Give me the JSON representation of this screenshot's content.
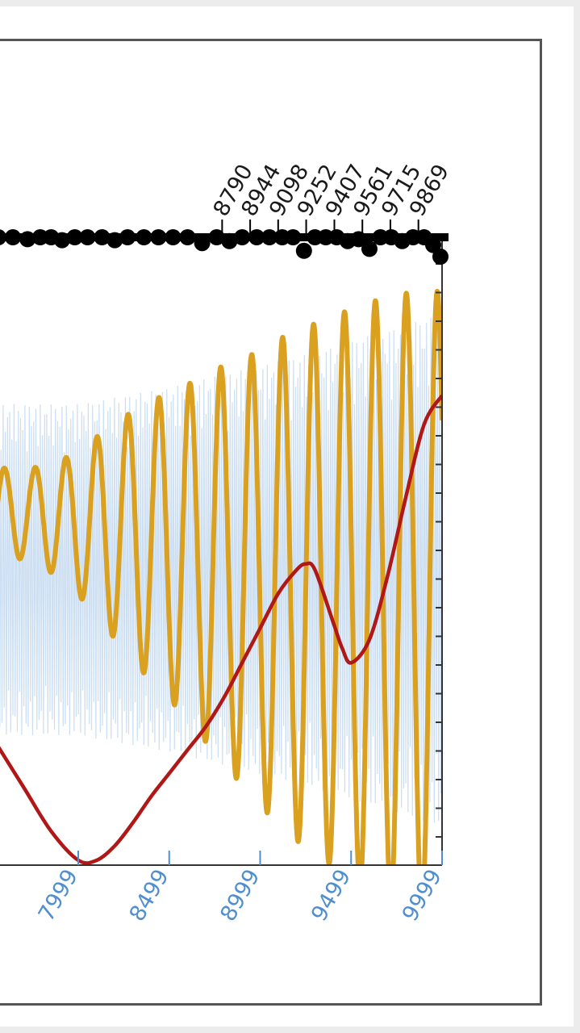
{
  "chart_data": {
    "type": "line",
    "title": "",
    "xlabel": "",
    "ylabel": "",
    "grid": false,
    "bottom_axis": {
      "visible_ticks": [
        7999,
        8499,
        8999,
        9499,
        9999
      ],
      "tick_color": "#4f8fcf"
    },
    "top_axis": {
      "visible_ticks": [
        8790,
        8944,
        9098,
        9252,
        9407,
        9561,
        9715,
        9869
      ],
      "tick_color": "#1a1a1a"
    },
    "xlim": [
      7550,
      9999
    ],
    "ylim": [
      -1,
      1
    ],
    "series": [
      {
        "role": "raw-signal",
        "color": "#a9c8ea",
        "x": [
          7999,
          8249,
          8499,
          8749,
          8999,
          9249,
          9499,
          9749,
          9999
        ],
        "amplitude": [
          0.6,
          0.63,
          0.66,
          0.7,
          0.74,
          0.78,
          0.83,
          0.88,
          0.93
        ]
      },
      {
        "role": "oscillation",
        "color": "#daa020",
        "period": 170,
        "x": [
          7550,
          7750,
          7950,
          8150,
          8350,
          8550,
          8750,
          8950,
          9150,
          9350,
          9550,
          9750,
          9999
        ],
        "center": [
          0.2,
          0.19,
          0.17,
          0.14,
          0.11,
          0.07,
          0.03,
          -0.02,
          -0.05,
          -0.07,
          -0.09,
          -0.1,
          -0.12
        ],
        "amplitude": [
          0.15,
          0.16,
          0.22,
          0.34,
          0.46,
          0.55,
          0.66,
          0.76,
          0.86,
          0.93,
          1.0,
          1.05,
          1.08
        ]
      },
      {
        "role": "trend",
        "color": "#b01818",
        "x": [
          7550,
          7700,
          7850,
          8000,
          8100,
          8200,
          8300,
          8400,
          8500,
          8600,
          8700,
          8800,
          8900,
          9000,
          9100,
          9200,
          9250,
          9300,
          9400,
          9450,
          9500,
          9600,
          9700,
          9800,
          9900,
          9999
        ],
        "y": [
          -0.6,
          -0.75,
          -0.9,
          -1.0,
          -1.0,
          -0.95,
          -0.87,
          -0.78,
          -0.7,
          -0.62,
          -0.54,
          -0.44,
          -0.32,
          -0.2,
          -0.08,
          0.0,
          0.02,
          0.0,
          -0.18,
          -0.27,
          -0.32,
          -0.24,
          -0.02,
          0.25,
          0.5,
          0.6
        ]
      },
      {
        "role": "top-markers",
        "color": "#000000",
        "x": [
          7560,
          7640,
          7720,
          7790,
          7850,
          7910,
          7980,
          8050,
          8130,
          8200,
          8270,
          8360,
          8440,
          8520,
          8600,
          8680,
          8760,
          8830,
          8900,
          8980,
          9050,
          9120,
          9180,
          9240,
          9300,
          9360,
          9420,
          9480,
          9540,
          9600,
          9660,
          9720,
          9780,
          9840,
          9900,
          9950,
          9990
        ],
        "drop": [
          0,
          0,
          0.2,
          0,
          0,
          0.3,
          0,
          0,
          0,
          0.3,
          0,
          0,
          0,
          0,
          0,
          0.6,
          0,
          0.4,
          0,
          0,
          0,
          0,
          0,
          1.4,
          0,
          0,
          0,
          0.4,
          0.2,
          1.2,
          0,
          0,
          0.4,
          0,
          0,
          0.8,
          2.0
        ]
      }
    ]
  }
}
